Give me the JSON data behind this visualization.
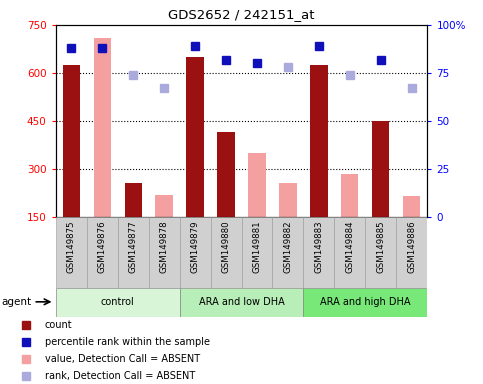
{
  "title": "GDS2652 / 242151_at",
  "samples": [
    "GSM149875",
    "GSM149876",
    "GSM149877",
    "GSM149878",
    "GSM149879",
    "GSM149880",
    "GSM149881",
    "GSM149882",
    "GSM149883",
    "GSM149884",
    "GSM149885",
    "GSM149886"
  ],
  "count_values": [
    625,
    null,
    255,
    null,
    650,
    415,
    null,
    null,
    625,
    null,
    450,
    null
  ],
  "absent_value_bars": [
    null,
    710,
    null,
    220,
    null,
    null,
    350,
    255,
    null,
    285,
    null,
    215
  ],
  "percentile_rank": [
    88,
    88,
    null,
    null,
    89,
    82,
    80,
    null,
    89,
    null,
    82,
    null
  ],
  "absent_rank": [
    null,
    null,
    74,
    67,
    null,
    null,
    null,
    78,
    null,
    74,
    null,
    67
  ],
  "ylim_left": [
    150,
    750
  ],
  "ylim_right": [
    0,
    100
  ],
  "yticks_left": [
    150,
    300,
    450,
    600,
    750
  ],
  "yticks_right": [
    0,
    25,
    50,
    75,
    100
  ],
  "bar_width": 0.55,
  "count_color": "#9b1010",
  "absent_value_color": "#f4a0a0",
  "percentile_color": "#1010bb",
  "absent_rank_color": "#aaaadd",
  "group_labels": [
    "control",
    "ARA and low DHA",
    "ARA and high DHA"
  ],
  "group_ranges": [
    [
      0,
      4
    ],
    [
      4,
      8
    ],
    [
      8,
      12
    ]
  ],
  "group_colors": [
    "#d8f5d8",
    "#b8efb8",
    "#78e878"
  ],
  "sample_bg_color": "#d0d0d0"
}
